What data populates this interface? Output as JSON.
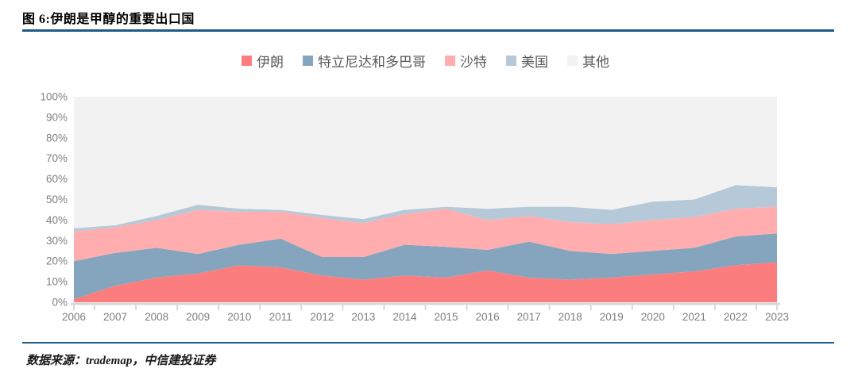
{
  "header": {
    "title": "图 6:伊朗是甲醇的重要出口国"
  },
  "footer": {
    "source": "数据来源：trademap，中信建投证券"
  },
  "colors": {
    "divider": "#1C5A88",
    "iran": "#FC7D7E",
    "trinidad": "#84A5BD",
    "saudi": "#FFADAF",
    "usa": "#B5C9D8",
    "other": "#F2F2F2",
    "axis_text": "#7F7F7F",
    "legend_text": "#595959",
    "axis_line": "#D9D9D9"
  },
  "chart_data": {
    "type": "area",
    "stacked": "percent",
    "title": "",
    "xlabel": "",
    "ylabel": "",
    "ylim": [
      0,
      100
    ],
    "grid": false,
    "legend_position": "top",
    "y_ticks": [
      "0%",
      "10%",
      "20%",
      "30%",
      "40%",
      "50%",
      "60%",
      "70%",
      "80%",
      "90%",
      "100%"
    ],
    "y_tick_values": [
      0,
      10,
      20,
      30,
      40,
      50,
      60,
      70,
      80,
      90,
      100
    ],
    "categories": [
      "2006",
      "2007",
      "2008",
      "2009",
      "2010",
      "2011",
      "2012",
      "2013",
      "2014",
      "2015",
      "2016",
      "2017",
      "2018",
      "2019",
      "2020",
      "2021",
      "2022",
      "2023"
    ],
    "series": [
      {
        "name": "伊朗",
        "color_key": "iran",
        "values": [
          1.5,
          8,
          12,
          14,
          18,
          17,
          13,
          11,
          13,
          12,
          15.5,
          12,
          11,
          12,
          13.5,
          15,
          18,
          19.5
        ]
      },
      {
        "name": "特立尼达和多巴哥",
        "color_key": "trinidad",
        "values": [
          18.5,
          16,
          14.5,
          9.5,
          10,
          14,
          9,
          11,
          15,
          15,
          10,
          17.5,
          14,
          11.5,
          11.5,
          11.5,
          14,
          14
        ]
      },
      {
        "name": "沙特",
        "color_key": "saudi",
        "values": [
          14.5,
          12.5,
          13.5,
          21.5,
          16,
          13,
          19,
          16.5,
          15,
          18.5,
          14.5,
          12.5,
          14,
          14.5,
          15,
          15,
          13.5,
          13
        ]
      },
      {
        "name": "美国",
        "color_key": "usa",
        "values": [
          1.5,
          1,
          2,
          2.5,
          1.5,
          1,
          1.5,
          2,
          2,
          1,
          5.5,
          4.5,
          7.5,
          7,
          9,
          8.5,
          11.5,
          9.5
        ]
      },
      {
        "name": "其他",
        "color_key": "other",
        "values": [
          64,
          62.5,
          58,
          52.5,
          54.5,
          55,
          57.5,
          59.5,
          55,
          53.5,
          54.5,
          53.5,
          53.5,
          55,
          51,
          50,
          43,
          44
        ]
      }
    ]
  }
}
